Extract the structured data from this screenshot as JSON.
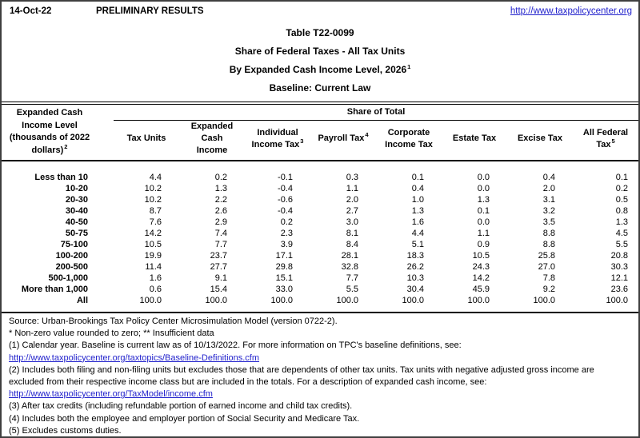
{
  "colors": {
    "link": "#2222cc",
    "text": "#000000",
    "border": "#000000"
  },
  "page_header": {
    "date": "14-Oct-22",
    "preliminary": "PRELIMINARY RESULTS",
    "site_link": "http://www.taxpolicycenter.org"
  },
  "title": {
    "line1": "Table T22-0099",
    "line2": "Share of Federal Taxes - All Tax Units",
    "line3": "By Expanded Cash Income Level, 2026",
    "line3_sup": "1",
    "line4": "Baseline: Current Law"
  },
  "table": {
    "stub_lines": [
      "Expanded Cash",
      "Income Level",
      "(thousands of 2022",
      "dollars)"
    ],
    "stub_sup": "2",
    "group_header": "Share of Total",
    "columns": [
      {
        "lines": [
          "Tax Units"
        ],
        "sup": ""
      },
      {
        "lines": [
          "Expanded Cash",
          "Income"
        ],
        "sup": ""
      },
      {
        "lines": [
          "Individual",
          "Income Tax"
        ],
        "sup": "3"
      },
      {
        "lines": [
          "Payroll Tax"
        ],
        "sup": "4"
      },
      {
        "lines": [
          "Corporate",
          "Income Tax"
        ],
        "sup": ""
      },
      {
        "lines": [
          "Estate Tax"
        ],
        "sup": ""
      },
      {
        "lines": [
          "Excise Tax"
        ],
        "sup": ""
      },
      {
        "lines": [
          "All Federal",
          "Tax"
        ],
        "sup": "5"
      }
    ],
    "rows": [
      {
        "label": "Less than 10",
        "values": [
          "4.4",
          "0.2",
          "-0.1",
          "0.3",
          "0.1",
          "0.0",
          "0.4",
          "0.1"
        ]
      },
      {
        "label": "10-20",
        "values": [
          "10.2",
          "1.3",
          "-0.4",
          "1.1",
          "0.4",
          "0.0",
          "2.0",
          "0.2"
        ]
      },
      {
        "label": "20-30",
        "values": [
          "10.2",
          "2.2",
          "-0.6",
          "2.0",
          "1.0",
          "1.3",
          "3.1",
          "0.5"
        ]
      },
      {
        "label": "30-40",
        "values": [
          "8.7",
          "2.6",
          "-0.4",
          "2.7",
          "1.3",
          "0.1",
          "3.2",
          "0.8"
        ]
      },
      {
        "label": "40-50",
        "values": [
          "7.6",
          "2.9",
          "0.2",
          "3.0",
          "1.6",
          "0.0",
          "3.5",
          "1.3"
        ]
      },
      {
        "label": "50-75",
        "values": [
          "14.2",
          "7.4",
          "2.3",
          "8.1",
          "4.4",
          "1.1",
          "8.8",
          "4.5"
        ]
      },
      {
        "label": "75-100",
        "values": [
          "10.5",
          "7.7",
          "3.9",
          "8.4",
          "5.1",
          "0.9",
          "8.8",
          "5.5"
        ]
      },
      {
        "label": "100-200",
        "values": [
          "19.9",
          "23.7",
          "17.1",
          "28.1",
          "18.3",
          "10.5",
          "25.8",
          "20.8"
        ]
      },
      {
        "label": "200-500",
        "values": [
          "11.4",
          "27.7",
          "29.8",
          "32.8",
          "26.2",
          "24.3",
          "27.0",
          "30.3"
        ]
      },
      {
        "label": "500-1,000",
        "values": [
          "1.6",
          "9.1",
          "15.1",
          "7.7",
          "10.3",
          "14.2",
          "7.8",
          "12.1"
        ]
      },
      {
        "label": "More than 1,000",
        "values": [
          "0.6",
          "15.4",
          "33.0",
          "5.5",
          "30.4",
          "45.9",
          "9.2",
          "23.6"
        ]
      },
      {
        "label": "All",
        "values": [
          "100.0",
          "100.0",
          "100.0",
          "100.0",
          "100.0",
          "100.0",
          "100.0",
          "100.0"
        ]
      }
    ]
  },
  "notes": [
    {
      "type": "text",
      "text": "Source: Urban-Brookings Tax Policy Center Microsimulation Model (version 0722-2)."
    },
    {
      "type": "text",
      "text": "* Non-zero value rounded to zero; ** Insufficient data"
    },
    {
      "type": "text",
      "text": "(1) Calendar year. Baseline is current law as of 10/13/2022. For more information on TPC's baseline definitions, see:"
    },
    {
      "type": "link",
      "text": "http://www.taxpolicycenter.org/taxtopics/Baseline-Definitions.cfm"
    },
    {
      "type": "text",
      "text": "(2) Includes both filing and non-filing units but excludes those that are dependents of other tax units. Tax units with negative adjusted gross income are excluded from their respective income class but are included in the totals. For a description of expanded cash income, see:"
    },
    {
      "type": "link",
      "text": "http://www.taxpolicycenter.org/TaxModel/income.cfm"
    },
    {
      "type": "text",
      "text": "(3) After tax credits (including refundable portion of earned income and child tax credits)."
    },
    {
      "type": "text",
      "text": "(4) Includes both the employee and employer portion of Social Security and Medicare Tax."
    },
    {
      "type": "text",
      "text": "(5) Excludes customs duties."
    }
  ]
}
